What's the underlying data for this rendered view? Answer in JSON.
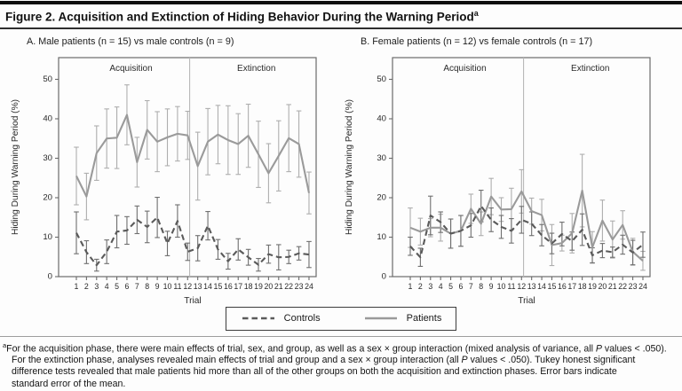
{
  "header": {
    "title": "Figure 2. Acquisition and Extinction of Hiding Behavior During the Warning Period",
    "title_superscript": "a"
  },
  "colors": {
    "patients_line": "#9a9a9a",
    "controls_line": "#5a5a5a",
    "patients_error": "#aeaeae",
    "controls_error": "#6f6f6f",
    "axis": "#6b6b6b",
    "divider": "#b9b9b9",
    "text": "#2a2a2a"
  },
  "chart_data": [
    {
      "id": "A",
      "type": "line",
      "title": "A. Male patients (n = 15) vs male controls (n = 9)",
      "xlabel": "Trial",
      "ylabel": "Hiding During Warning Period (%)",
      "x_ticks": [
        1,
        2,
        3,
        4,
        5,
        6,
        7,
        8,
        9,
        10,
        11,
        12,
        13,
        14,
        15,
        16,
        17,
        18,
        19,
        20,
        21,
        22,
        23,
        24
      ],
      "ylim": [
        0,
        55
      ],
      "y_ticks": [
        0,
        10,
        20,
        30,
        40,
        50
      ],
      "grid": false,
      "phase_divider_trial": 12.2,
      "phases": [
        {
          "label": "Acquisition",
          "center_trial": 6.4
        },
        {
          "label": "Extinction",
          "center_trial": 18.8
        }
      ],
      "error_bars": "standard error of the mean",
      "series": [
        {
          "name": "Patients",
          "line": "solid",
          "values": [
            25.5,
            20.3,
            31.3,
            35.0,
            35.2,
            41.0,
            29.0,
            37.2,
            34.2,
            35.3,
            36.2,
            35.8,
            28.0,
            34.2,
            36.0,
            34.6,
            33.6,
            35.7,
            31.0,
            26.2,
            30.6,
            35.1,
            33.6,
            21.2
          ],
          "stderr": [
            7.3,
            5.9,
            6.9,
            7.5,
            7.8,
            7.6,
            6.3,
            7.4,
            7.6,
            7.2,
            6.9,
            6.1,
            8.6,
            8.4,
            7.4,
            8.7,
            7.7,
            8.0,
            8.4,
            7.5,
            8.9,
            8.5,
            8.4,
            5.3
          ]
        },
        {
          "name": "Controls",
          "line": "dashed",
          "values": [
            11.1,
            6.2,
            2.9,
            6.3,
            11.4,
            11.7,
            14.4,
            12.6,
            15.0,
            8.4,
            14.1,
            6.3,
            7.2,
            12.9,
            6.9,
            3.9,
            6.9,
            4.9,
            3.0,
            5.7,
            4.9,
            5.0,
            5.9,
            5.6
          ],
          "stderr": [
            5.3,
            2.9,
            1.5,
            3.0,
            4.1,
            3.5,
            3.5,
            4.0,
            5.1,
            3.1,
            4.1,
            2.2,
            3.2,
            3.6,
            2.5,
            2.0,
            2.7,
            2.0,
            1.6,
            2.3,
            3.2,
            1.7,
            1.7,
            3.3
          ]
        }
      ]
    },
    {
      "id": "B",
      "type": "line",
      "title": "B. Female patients (n = 12) vs female controls (n = 17)",
      "xlabel": "Trial",
      "ylabel": "Hiding During Warning Period (%)",
      "x_ticks": [
        1,
        2,
        3,
        4,
        5,
        6,
        7,
        8,
        9,
        10,
        11,
        12,
        13,
        14,
        15,
        16,
        17,
        18,
        19,
        20,
        21,
        22,
        23,
        24
      ],
      "ylim": [
        0,
        55
      ],
      "y_ticks": [
        0,
        10,
        20,
        30,
        40,
        50
      ],
      "grid": false,
      "phase_divider_trial": 12.2,
      "phases": [
        {
          "label": "Acquisition",
          "center_trial": 6.4
        },
        {
          "label": "Extinction",
          "center_trial": 18.8
        }
      ],
      "error_bars": "standard error of the mean",
      "series": [
        {
          "name": "Patients",
          "line": "solid",
          "values": [
            12.4,
            11.4,
            12.4,
            12.4,
            10.9,
            11.6,
            17.2,
            13.4,
            20.3,
            17.0,
            17.1,
            21.6,
            16.6,
            15.6,
            8.0,
            8.5,
            11.0,
            21.8,
            7.4,
            14.2,
            9.4,
            13.1,
            6.3,
            4.0
          ],
          "stderr": [
            5.0,
            3.4,
            2.3,
            3.4,
            3.7,
            3.9,
            3.7,
            3.0,
            4.6,
            3.0,
            5.3,
            5.5,
            3.3,
            4.0,
            5.2,
            2.0,
            5.0,
            9.2,
            4.0,
            5.2,
            4.7,
            3.6,
            3.4,
            2.4
          ]
        },
        {
          "name": "Controls",
          "line": "dashed",
          "values": [
            7.7,
            4.9,
            15.5,
            13.8,
            10.9,
            11.6,
            13.0,
            17.9,
            14.4,
            12.6,
            11.6,
            14.4,
            13.4,
            10.5,
            8.4,
            10.8,
            9.0,
            11.9,
            5.4,
            6.6,
            6.2,
            8.1,
            6.1,
            8.1
          ],
          "stderr": [
            2.3,
            2.3,
            4.9,
            2.6,
            3.7,
            3.9,
            3.0,
            4.0,
            3.0,
            2.9,
            3.1,
            3.4,
            3.0,
            2.7,
            2.6,
            3.0,
            2.3,
            4.0,
            1.9,
            1.8,
            1.3,
            2.4,
            3.1,
            3.2
          ]
        }
      ]
    }
  ],
  "legend": {
    "items": [
      {
        "label": "Controls",
        "style": "dashed"
      },
      {
        "label": "Patients",
        "style": "solid"
      }
    ]
  },
  "footnote": {
    "marker": "a",
    "lines": [
      "For the acquisition phase, there were main effects of trial, sex, and group, as well as a sex × group interaction (mixed analysis of variance, all P values < .050).",
      "For the extinction phase, analyses revealed main effects of trial and group and a sex × group interaction (all P values < .050). Tukey honest significant",
      "difference tests revealed that male patients hid more than all of the other groups on both the acquisition and extinction phases. Error bars indicate",
      "standard error of the mean."
    ]
  }
}
